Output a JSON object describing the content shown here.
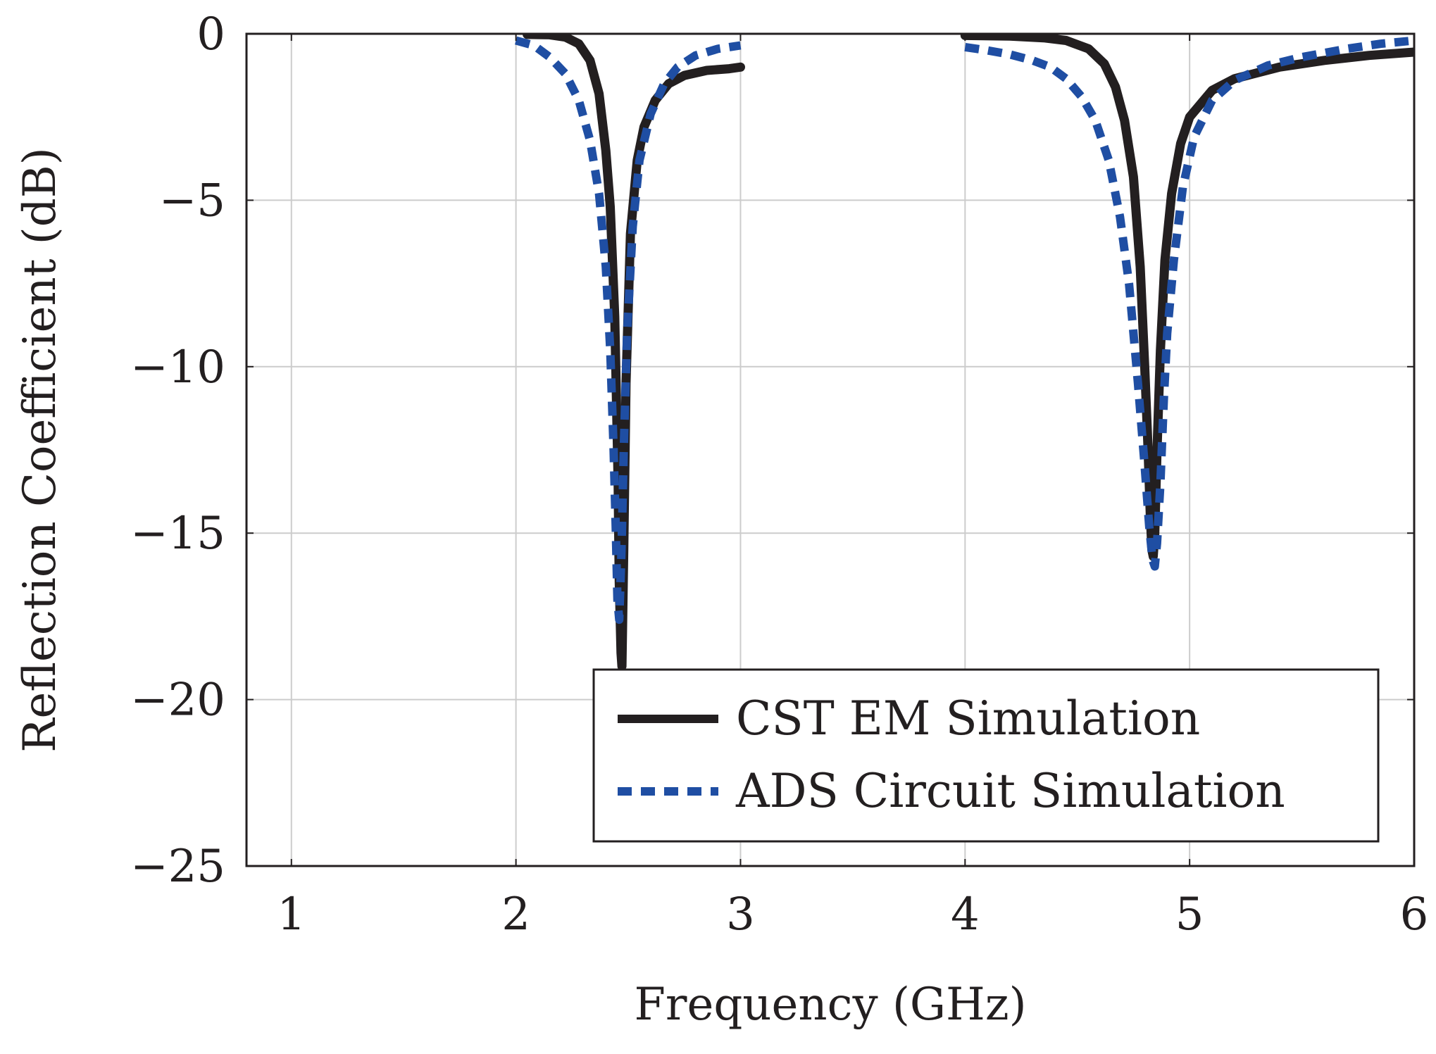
{
  "chart_data": {
    "type": "line",
    "title": "",
    "xlabel": "Frequency (GHz)",
    "ylabel": "Reflection Coefficient (dB)",
    "xlim": [
      0.8,
      6.0
    ],
    "ylim": [
      -25,
      0
    ],
    "grid": true,
    "legend_position": "bottom-right",
    "xticks": [
      {
        "value": 1,
        "label": "1"
      },
      {
        "value": 2,
        "label": "2"
      },
      {
        "value": 3,
        "label": "3"
      },
      {
        "value": 4,
        "label": "4"
      },
      {
        "value": 5,
        "label": "5"
      },
      {
        "value": 6,
        "label": "6"
      }
    ],
    "yticks": [
      {
        "value": 0,
        "label": "0"
      },
      {
        "value": -5,
        "label": "−5"
      },
      {
        "value": -10,
        "label": "−10"
      },
      {
        "value": -15,
        "label": "−15"
      },
      {
        "value": -20,
        "label": "−20"
      },
      {
        "value": -25,
        "label": "−25"
      }
    ],
    "series": [
      {
        "name": "CST EM Simulation",
        "color": "#231f20",
        "style": "solid",
        "segments": [
          [
            [
              2.05,
              -0.02
            ],
            [
              2.15,
              -0.03
            ],
            [
              2.22,
              -0.1
            ],
            [
              2.28,
              -0.3
            ],
            [
              2.33,
              -0.8
            ],
            [
              2.37,
              -1.8
            ],
            [
              2.4,
              -3.5
            ],
            [
              2.42,
              -5.2
            ],
            [
              2.44,
              -8.5
            ],
            [
              2.455,
              -13.5
            ],
            [
              2.46,
              -16.5
            ],
            [
              2.468,
              -18.6
            ],
            [
              2.472,
              -19.0
            ],
            [
              2.48,
              -15.5
            ],
            [
              2.49,
              -10.5
            ],
            [
              2.51,
              -6.0
            ],
            [
              2.54,
              -3.8
            ],
            [
              2.57,
              -2.8
            ],
            [
              2.62,
              -2.0
            ],
            [
              2.68,
              -1.5
            ],
            [
              2.75,
              -1.25
            ],
            [
              2.85,
              -1.1
            ],
            [
              2.95,
              -1.05
            ],
            [
              3.0,
              -1.0
            ]
          ],
          [
            [
              4.0,
              -0.05
            ],
            [
              4.2,
              -0.07
            ],
            [
              4.35,
              -0.12
            ],
            [
              4.45,
              -0.2
            ],
            [
              4.55,
              -0.45
            ],
            [
              4.62,
              -0.9
            ],
            [
              4.67,
              -1.6
            ],
            [
              4.71,
              -2.6
            ],
            [
              4.75,
              -4.3
            ],
            [
              4.78,
              -7.0
            ],
            [
              4.8,
              -10.0
            ],
            [
              4.815,
              -12.5
            ],
            [
              4.825,
              -14.5
            ],
            [
              4.832,
              -15.5
            ],
            [
              4.838,
              -15.7
            ],
            [
              4.845,
              -15.0
            ],
            [
              4.855,
              -12.5
            ],
            [
              4.87,
              -9.5
            ],
            [
              4.89,
              -6.8
            ],
            [
              4.92,
              -4.8
            ],
            [
              4.96,
              -3.3
            ],
            [
              5.0,
              -2.5
            ],
            [
              5.1,
              -1.7
            ],
            [
              5.2,
              -1.35
            ],
            [
              5.4,
              -1.0
            ],
            [
              5.6,
              -0.8
            ],
            [
              5.8,
              -0.65
            ],
            [
              6.0,
              -0.55
            ]
          ]
        ]
      },
      {
        "name": "ADS Circuit Simulation",
        "color": "#1f4ea3",
        "style": "dashed",
        "segments": [
          [
            [
              2.0,
              -0.2
            ],
            [
              2.08,
              -0.35
            ],
            [
              2.15,
              -0.7
            ],
            [
              2.22,
              -1.2
            ],
            [
              2.28,
              -2.0
            ],
            [
              2.33,
              -3.2
            ],
            [
              2.37,
              -4.8
            ],
            [
              2.4,
              -7.0
            ],
            [
              2.42,
              -9.5
            ],
            [
              2.435,
              -12.5
            ],
            [
              2.445,
              -15.0
            ],
            [
              2.452,
              -17.0
            ],
            [
              2.46,
              -17.6
            ],
            [
              2.47,
              -15.5
            ],
            [
              2.48,
              -12.5
            ],
            [
              2.495,
              -9.0
            ],
            [
              2.52,
              -5.8
            ],
            [
              2.55,
              -3.8
            ],
            [
              2.6,
              -2.4
            ],
            [
              2.66,
              -1.5
            ],
            [
              2.72,
              -1.0
            ],
            [
              2.8,
              -0.65
            ],
            [
              2.9,
              -0.45
            ],
            [
              3.0,
              -0.35
            ]
          ],
          [
            [
              4.0,
              -0.4
            ],
            [
              4.1,
              -0.5
            ],
            [
              4.2,
              -0.62
            ],
            [
              4.3,
              -0.8
            ],
            [
              4.38,
              -1.0
            ],
            [
              4.45,
              -1.35
            ],
            [
              4.52,
              -1.9
            ],
            [
              4.58,
              -2.6
            ],
            [
              4.64,
              -3.8
            ],
            [
              4.69,
              -5.5
            ],
            [
              4.73,
              -7.5
            ],
            [
              4.77,
              -10.5
            ],
            [
              4.8,
              -13.0
            ],
            [
              4.82,
              -14.8
            ],
            [
              4.835,
              -15.8
            ],
            [
              4.845,
              -16.0
            ],
            [
              4.855,
              -15.3
            ],
            [
              4.87,
              -13.5
            ],
            [
              4.885,
              -11.0
            ],
            [
              4.9,
              -9.0
            ],
            [
              4.93,
              -6.8
            ],
            [
              4.97,
              -4.6
            ],
            [
              5.02,
              -3.1
            ],
            [
              5.1,
              -2.0
            ],
            [
              5.2,
              -1.4
            ],
            [
              5.35,
              -0.95
            ],
            [
              5.5,
              -0.7
            ],
            [
              5.7,
              -0.45
            ],
            [
              5.85,
              -0.3
            ],
            [
              6.0,
              -0.2
            ]
          ]
        ]
      }
    ]
  }
}
